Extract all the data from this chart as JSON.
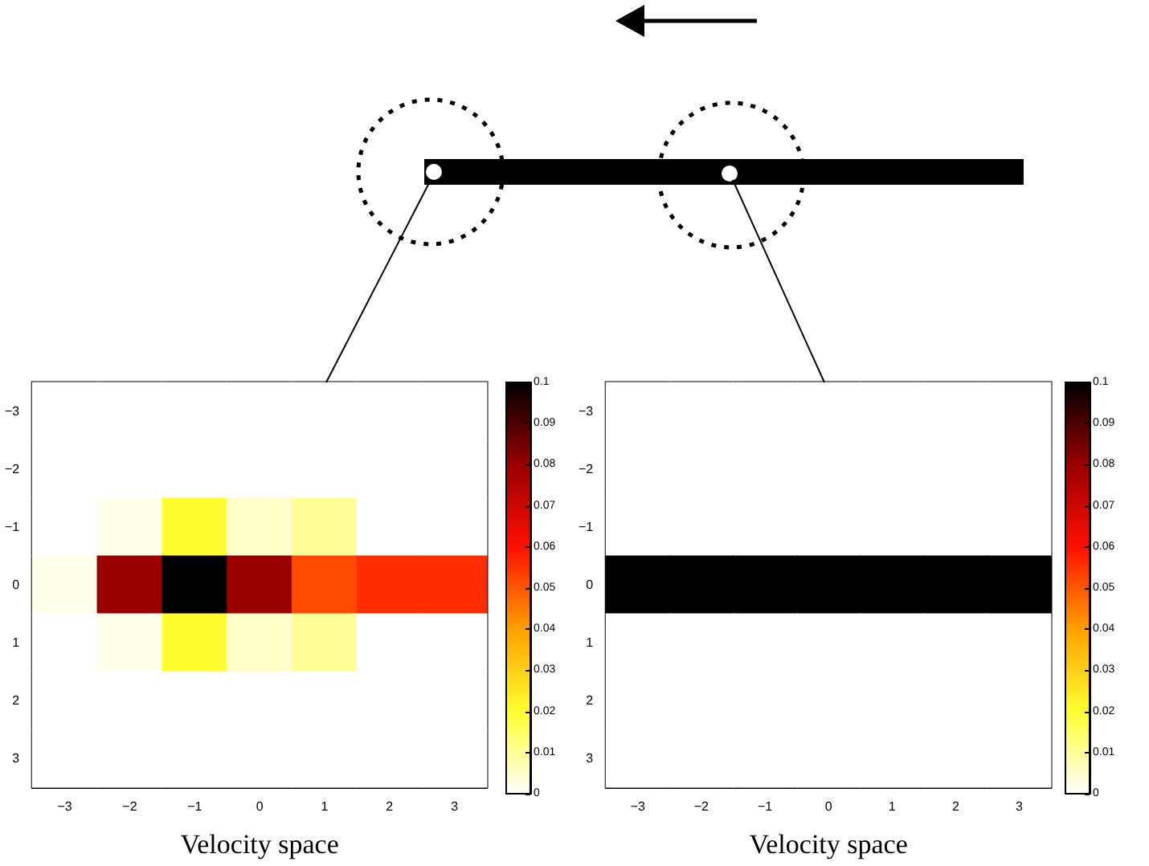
{
  "chart_data": [
    {
      "type": "heatmap",
      "xlabel": "Velocity space",
      "categories": [
        "−3",
        "−2",
        "−1",
        "0",
        "1",
        "2",
        "3"
      ],
      "y_categories": [
        "−3",
        "−2",
        "−1",
        "0",
        "1",
        "2",
        "3"
      ],
      "cells": [
        [
          0,
          0,
          0,
          0,
          0,
          0,
          0
        ],
        [
          0,
          0,
          0,
          0,
          0,
          0,
          0
        ],
        [
          0,
          0.002,
          0.02,
          0.005,
          0.01,
          0,
          0
        ],
        [
          0.002,
          0.08,
          0.1,
          0.08,
          0.052,
          0.056,
          0.056
        ],
        [
          0,
          0.002,
          0.02,
          0.005,
          0.01,
          0,
          0
        ],
        [
          0,
          0,
          0,
          0,
          0,
          0,
          0
        ],
        [
          0,
          0,
          0,
          0,
          0,
          0,
          0
        ]
      ],
      "clim": [
        0,
        0.1
      ],
      "cticks": [
        0,
        0.01,
        0.02,
        0.03,
        0.04,
        0.05,
        0.06,
        0.07,
        0.08,
        0.09,
        0.1
      ]
    },
    {
      "type": "heatmap",
      "xlabel": "Velocity space",
      "categories": [
        "−3",
        "−2",
        "−1",
        "0",
        "1",
        "2",
        "3"
      ],
      "y_categories": [
        "−3",
        "−2",
        "−1",
        "0",
        "1",
        "2",
        "3"
      ],
      "cells": [
        [
          0,
          0,
          0,
          0,
          0,
          0,
          0
        ],
        [
          0,
          0,
          0,
          0,
          0,
          0,
          0
        ],
        [
          0,
          0,
          0,
          0,
          0,
          0,
          0
        ],
        [
          0.1,
          0.1,
          0.1,
          0.1,
          0.1,
          0.1,
          0.1
        ],
        [
          0,
          0,
          0,
          0,
          0,
          0,
          0
        ],
        [
          0,
          0,
          0,
          0,
          0,
          0,
          0
        ],
        [
          0,
          0,
          0,
          0,
          0,
          0,
          0
        ]
      ],
      "clim": [
        0,
        0.1
      ],
      "cticks": [
        0,
        0.01,
        0.02,
        0.03,
        0.04,
        0.05,
        0.06,
        0.07,
        0.08,
        0.09,
        0.1
      ]
    }
  ]
}
